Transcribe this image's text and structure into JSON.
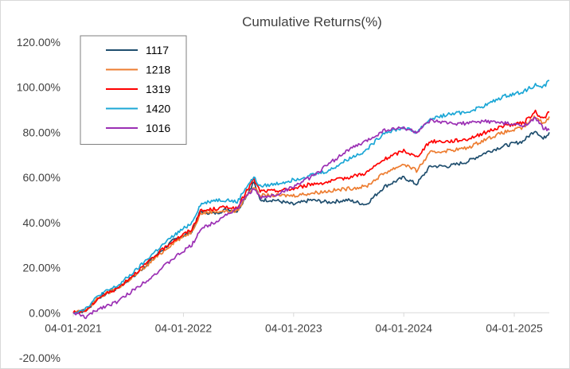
{
  "chart_data": {
    "type": "line",
    "title": "Cumulative Returns(%)",
    "xlabel": "",
    "ylabel": "",
    "ylim": [
      -20,
      120
    ],
    "ytick_values": [
      -20,
      0,
      20,
      40,
      60,
      80,
      100,
      120
    ],
    "ytick_labels": [
      "-20.00%",
      "0.00%",
      "20.00%",
      "40.00%",
      "60.00%",
      "80.00%",
      "100.00%",
      "120.00%"
    ],
    "xlim": [
      "2021-01-04",
      "2025-04-30"
    ],
    "xtick_dates": [
      "2021-01-04",
      "2022-01-04",
      "2023-01-04",
      "2024-01-04",
      "2025-01-04"
    ],
    "xtick_labels": [
      "04-01-2021",
      "04-01-2022",
      "04-01-2023",
      "04-01-2024",
      "04-01-2025"
    ],
    "legend_position": "top-left",
    "grid": false,
    "series": [
      {
        "name": "1117",
        "color": "#1f4e6e",
        "points": [
          [
            "2021-01-04",
            0
          ],
          [
            "2021-02-15",
            1
          ],
          [
            "2021-04-01",
            7
          ],
          [
            "2021-06-01",
            11
          ],
          [
            "2021-08-01",
            17
          ],
          [
            "2021-10-01",
            25
          ],
          [
            "2021-12-01",
            32
          ],
          [
            "2022-02-01",
            36
          ],
          [
            "2022-03-01",
            45
          ],
          [
            "2022-04-15",
            44
          ],
          [
            "2022-06-01",
            46
          ],
          [
            "2022-07-01",
            45
          ],
          [
            "2022-08-01",
            52
          ],
          [
            "2022-08-25",
            58
          ],
          [
            "2022-09-15",
            50
          ],
          [
            "2022-11-01",
            50
          ],
          [
            "2023-01-04",
            48
          ],
          [
            "2023-03-01",
            50
          ],
          [
            "2023-05-01",
            49
          ],
          [
            "2023-07-01",
            50
          ],
          [
            "2023-09-01",
            48
          ],
          [
            "2023-11-01",
            56
          ],
          [
            "2024-01-04",
            60
          ],
          [
            "2024-02-15",
            57
          ],
          [
            "2024-04-01",
            65
          ],
          [
            "2024-06-01",
            65
          ],
          [
            "2024-08-01",
            67
          ],
          [
            "2024-10-01",
            71
          ],
          [
            "2024-12-01",
            74
          ],
          [
            "2025-02-01",
            76
          ],
          [
            "2025-03-15",
            81
          ],
          [
            "2025-04-10",
            77
          ],
          [
            "2025-04-30",
            80
          ]
        ]
      },
      {
        "name": "1218",
        "color": "#ed7d31",
        "points": [
          [
            "2021-01-04",
            0
          ],
          [
            "2021-02-15",
            1
          ],
          [
            "2021-04-01",
            7
          ],
          [
            "2021-06-01",
            11
          ],
          [
            "2021-08-01",
            17
          ],
          [
            "2021-10-01",
            24
          ],
          [
            "2021-12-01",
            31
          ],
          [
            "2022-02-01",
            36
          ],
          [
            "2022-03-01",
            44
          ],
          [
            "2022-04-15",
            45
          ],
          [
            "2022-06-01",
            45
          ],
          [
            "2022-07-01",
            45
          ],
          [
            "2022-08-01",
            52
          ],
          [
            "2022-08-25",
            56
          ],
          [
            "2022-09-15",
            52
          ],
          [
            "2022-11-01",
            52
          ],
          [
            "2023-01-04",
            52
          ],
          [
            "2023-03-01",
            53
          ],
          [
            "2023-05-01",
            54
          ],
          [
            "2023-07-01",
            55
          ],
          [
            "2023-09-01",
            56
          ],
          [
            "2023-11-01",
            62
          ],
          [
            "2024-01-04",
            66
          ],
          [
            "2024-02-15",
            63
          ],
          [
            "2024-04-01",
            71
          ],
          [
            "2024-06-01",
            72
          ],
          [
            "2024-08-01",
            73
          ],
          [
            "2024-10-01",
            77
          ],
          [
            "2024-12-01",
            80
          ],
          [
            "2025-02-01",
            82
          ],
          [
            "2025-03-15",
            87
          ],
          [
            "2025-04-10",
            84
          ],
          [
            "2025-04-30",
            87
          ]
        ]
      },
      {
        "name": "1319",
        "color": "#ff0000",
        "points": [
          [
            "2021-01-04",
            0
          ],
          [
            "2021-02-15",
            1
          ],
          [
            "2021-04-01",
            7
          ],
          [
            "2021-06-01",
            11
          ],
          [
            "2021-08-01",
            18
          ],
          [
            "2021-10-01",
            25
          ],
          [
            "2021-12-01",
            32
          ],
          [
            "2022-02-01",
            37
          ],
          [
            "2022-03-01",
            45
          ],
          [
            "2022-04-15",
            46
          ],
          [
            "2022-06-01",
            47
          ],
          [
            "2022-07-01",
            46
          ],
          [
            "2022-08-01",
            54
          ],
          [
            "2022-08-25",
            59
          ],
          [
            "2022-09-15",
            54
          ],
          [
            "2022-11-01",
            54
          ],
          [
            "2023-01-04",
            55
          ],
          [
            "2023-03-01",
            57
          ],
          [
            "2023-05-01",
            58
          ],
          [
            "2023-07-01",
            60
          ],
          [
            "2023-09-01",
            62
          ],
          [
            "2023-11-01",
            68
          ],
          [
            "2024-01-04",
            72
          ],
          [
            "2024-02-15",
            69
          ],
          [
            "2024-04-01",
            76
          ],
          [
            "2024-06-01",
            76
          ],
          [
            "2024-08-01",
            77
          ],
          [
            "2024-10-01",
            80
          ],
          [
            "2024-12-01",
            83
          ],
          [
            "2025-02-01",
            84
          ],
          [
            "2025-03-15",
            89
          ],
          [
            "2025-04-10",
            86
          ],
          [
            "2025-04-30",
            89
          ]
        ]
      },
      {
        "name": "1420",
        "color": "#1ca7d6",
        "points": [
          [
            "2021-01-04",
            0
          ],
          [
            "2021-02-15",
            2
          ],
          [
            "2021-04-01",
            8
          ],
          [
            "2021-06-01",
            12
          ],
          [
            "2021-08-01",
            19
          ],
          [
            "2021-10-01",
            27
          ],
          [
            "2021-12-01",
            34
          ],
          [
            "2022-02-01",
            40
          ],
          [
            "2022-03-01",
            48
          ],
          [
            "2022-04-15",
            50
          ],
          [
            "2022-06-01",
            50
          ],
          [
            "2022-07-01",
            49
          ],
          [
            "2022-08-01",
            56
          ],
          [
            "2022-08-25",
            60
          ],
          [
            "2022-09-15",
            56
          ],
          [
            "2022-11-01",
            57
          ],
          [
            "2023-01-04",
            59
          ],
          [
            "2023-03-01",
            61
          ],
          [
            "2023-05-01",
            63
          ],
          [
            "2023-07-01",
            68
          ],
          [
            "2023-09-01",
            72
          ],
          [
            "2023-11-01",
            80
          ],
          [
            "2024-01-04",
            82
          ],
          [
            "2024-02-15",
            80
          ],
          [
            "2024-04-01",
            86
          ],
          [
            "2024-06-01",
            88
          ],
          [
            "2024-08-01",
            89
          ],
          [
            "2024-10-01",
            92
          ],
          [
            "2024-12-01",
            96
          ],
          [
            "2025-02-01",
            98
          ],
          [
            "2025-03-15",
            101
          ],
          [
            "2025-04-10",
            100
          ],
          [
            "2025-04-30",
            103
          ]
        ]
      },
      {
        "name": "1016",
        "color": "#9b2fb4",
        "points": [
          [
            "2021-01-04",
            0
          ],
          [
            "2021-02-15",
            -2
          ],
          [
            "2021-04-01",
            2
          ],
          [
            "2021-06-01",
            5
          ],
          [
            "2021-08-01",
            11
          ],
          [
            "2021-10-01",
            17
          ],
          [
            "2021-12-01",
            24
          ],
          [
            "2022-02-01",
            30
          ],
          [
            "2022-03-01",
            37
          ],
          [
            "2022-04-15",
            40
          ],
          [
            "2022-06-01",
            44
          ],
          [
            "2022-07-01",
            46
          ],
          [
            "2022-08-01",
            52
          ],
          [
            "2022-08-25",
            55
          ],
          [
            "2022-09-15",
            51
          ],
          [
            "2022-11-01",
            52
          ],
          [
            "2023-01-04",
            56
          ],
          [
            "2023-03-01",
            60
          ],
          [
            "2023-05-01",
            66
          ],
          [
            "2023-07-01",
            72
          ],
          [
            "2023-09-01",
            76
          ],
          [
            "2023-11-01",
            81
          ],
          [
            "2024-01-04",
            82
          ],
          [
            "2024-02-15",
            80
          ],
          [
            "2024-04-01",
            85
          ],
          [
            "2024-06-01",
            84
          ],
          [
            "2024-08-01",
            84
          ],
          [
            "2024-10-01",
            85
          ],
          [
            "2024-12-01",
            84
          ],
          [
            "2025-02-01",
            83
          ],
          [
            "2025-03-15",
            86
          ],
          [
            "2025-04-10",
            82
          ],
          [
            "2025-04-30",
            81
          ]
        ]
      }
    ]
  }
}
